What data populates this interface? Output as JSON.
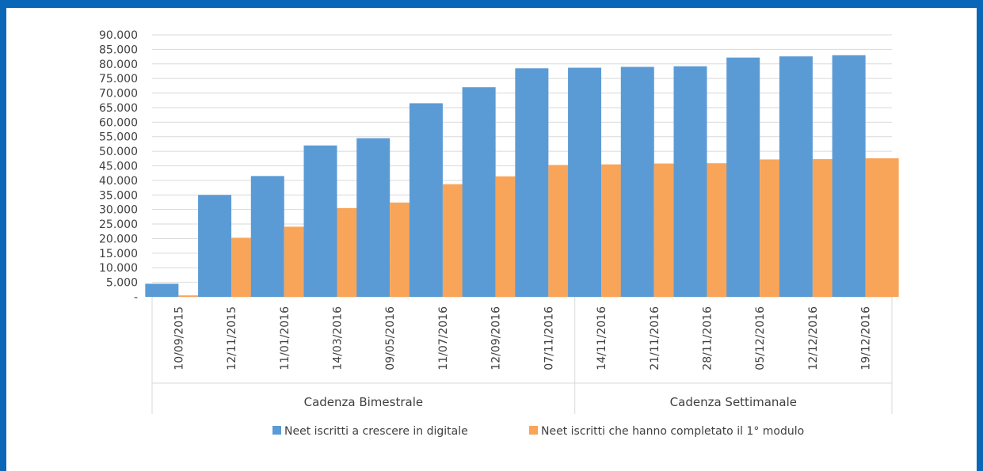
{
  "chart_data": {
    "type": "bar",
    "categories": [
      "10/09/2015",
      "12/11/2015",
      "11/01/2016",
      "14/03/2016",
      "09/05/2016",
      "11/07/2016",
      "12/09/2016",
      "07/11/2016",
      "14/11/2016",
      "21/11/2016",
      "28/11/2016",
      "05/12/2016",
      "12/12/2016",
      "19/12/2016"
    ],
    "groups": [
      {
        "label": "Cadenza Bimestrale",
        "start": 0,
        "end": 7
      },
      {
        "label": "Cadenza Settimanale",
        "start": 8,
        "end": 13
      }
    ],
    "series": [
      {
        "name": "Neet iscritti a crescere in digitale",
        "color": "#5b9bd5",
        "values": [
          4500,
          35000,
          41500,
          52000,
          54500,
          66500,
          72000,
          78500,
          78700,
          79000,
          79200,
          82200,
          82600,
          83000
        ]
      },
      {
        "name": "Neet iscritti che hanno completato il 1° modulo",
        "color": "#f8a55a",
        "values": [
          500,
          20300,
          24100,
          30500,
          32400,
          38700,
          41400,
          45300,
          45500,
          45800,
          45900,
          47200,
          47300,
          47600
        ]
      }
    ],
    "ylim": [
      0,
      90000
    ],
    "yticks": [
      {
        "value": 0,
        "label": "-"
      },
      {
        "value": 5000,
        "label": "5.000"
      },
      {
        "value": 10000,
        "label": "10.000"
      },
      {
        "value": 15000,
        "label": "15.000"
      },
      {
        "value": 20000,
        "label": "20.000"
      },
      {
        "value": 25000,
        "label": "25.000"
      },
      {
        "value": 30000,
        "label": "30.000"
      },
      {
        "value": 35000,
        "label": "35.000"
      },
      {
        "value": 40000,
        "label": "40.000"
      },
      {
        "value": 45000,
        "label": "45.000"
      },
      {
        "value": 50000,
        "label": "50.000"
      },
      {
        "value": 55000,
        "label": "55.000"
      },
      {
        "value": 60000,
        "label": "60.000"
      },
      {
        "value": 65000,
        "label": "65.000"
      },
      {
        "value": 70000,
        "label": "70.000"
      },
      {
        "value": 75000,
        "label": "75.000"
      },
      {
        "value": 80000,
        "label": "80.000"
      },
      {
        "value": 85000,
        "label": "85.000"
      },
      {
        "value": 90000,
        "label": "90.000"
      }
    ],
    "grid": true,
    "legend_position": "bottom"
  }
}
